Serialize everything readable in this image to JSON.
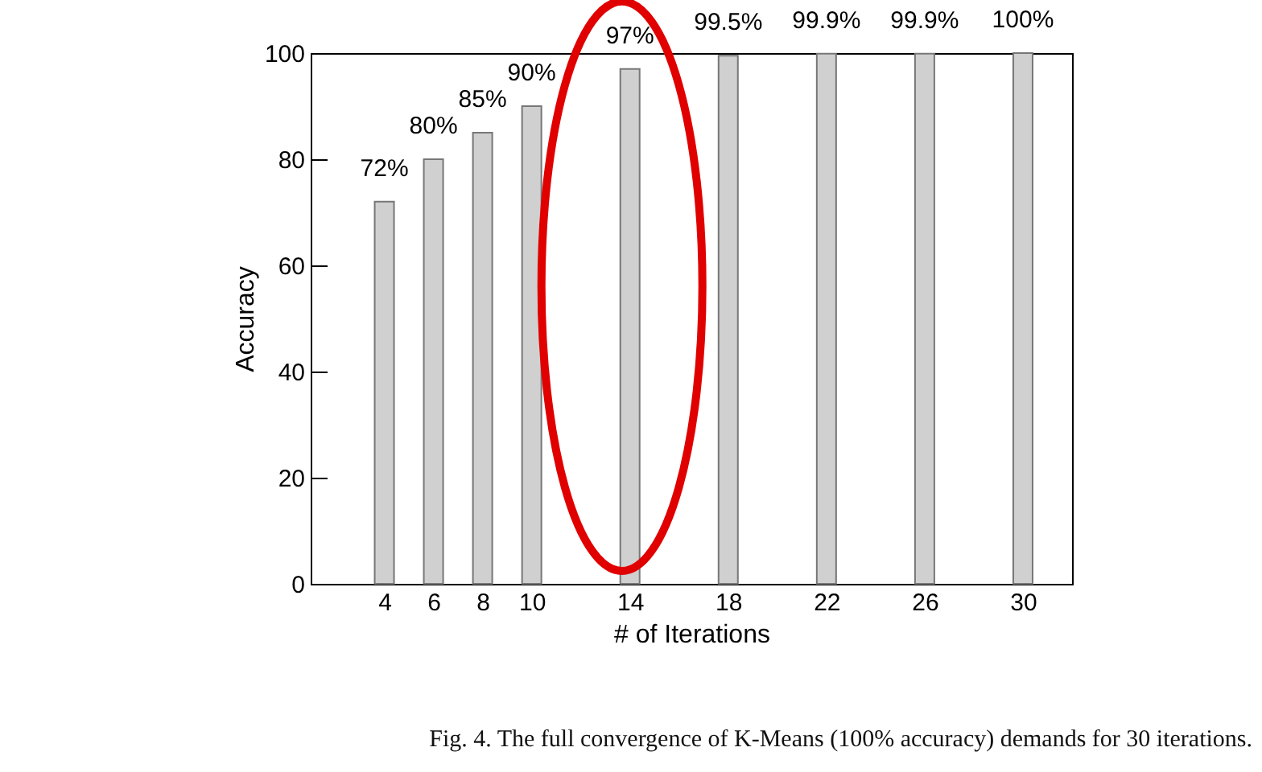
{
  "chart_data": {
    "type": "bar",
    "xlabel": "# of Iterations",
    "ylabel": "Accuracy",
    "x": [
      4,
      6,
      8,
      10,
      14,
      18,
      22,
      26,
      30
    ],
    "values": [
      72,
      80,
      85,
      90,
      97,
      99.5,
      99.9,
      99.9,
      100
    ],
    "value_labels": [
      "72%",
      "80%",
      "85%",
      "90%",
      "97%",
      "99.5%",
      "99.9%",
      "99.9%",
      "100%"
    ],
    "color": "#d0d0d0",
    "xlim": [
      1,
      32
    ],
    "xticks": [
      4,
      6,
      8,
      10,
      14,
      18,
      22,
      26,
      30
    ],
    "ylim": [
      0,
      100
    ],
    "yticks": [
      0,
      20,
      40,
      60,
      80,
      100
    ],
    "grid": false,
    "annotations": [
      "Fig. 4.  The full convergence of K-Means (100% accuracy) demands for 30 iterations."
    ]
  }
}
